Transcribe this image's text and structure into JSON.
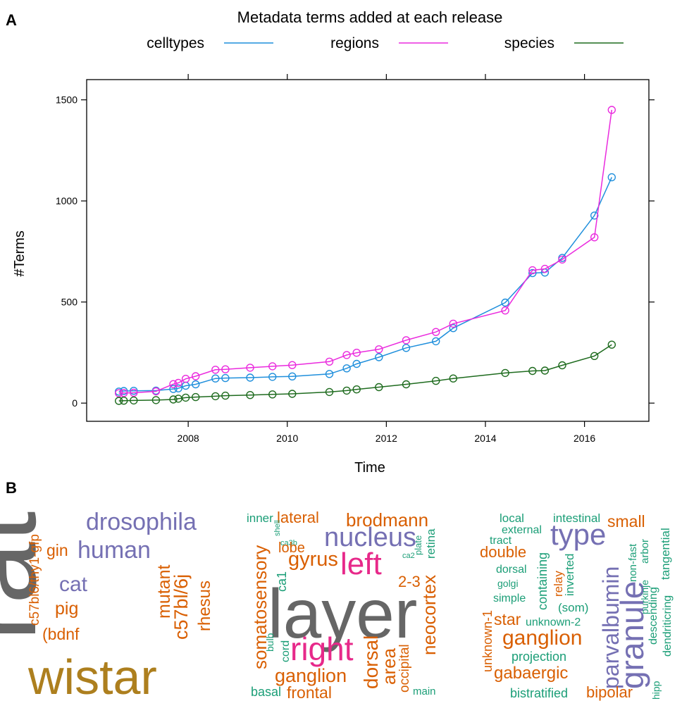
{
  "panels": {
    "a": "A",
    "b": "B"
  },
  "chart_data": {
    "type": "line",
    "title": "Metadata terms added at each release",
    "xlabel": "Time",
    "ylabel": "#Terms",
    "xlim": [
      2005.95,
      2017.3
    ],
    "ylim": [
      -90,
      1600
    ],
    "xticks": [
      2008,
      2010,
      2012,
      2014,
      2016
    ],
    "yticks": [
      0,
      500,
      1000,
      1500
    ],
    "legend_position": "top",
    "grid": false,
    "series": [
      {
        "name": "celltypes",
        "color": "#1f8fdc",
        "x": [
          2006.6,
          2006.7,
          2006.9,
          2007.35,
          2007.7,
          2007.8,
          2007.95,
          2008.15,
          2008.55,
          2008.75,
          2009.25,
          2009.7,
          2010.1,
          2010.85,
          2011.2,
          2011.4,
          2011.85,
          2012.4,
          2013.0,
          2013.35,
          2014.4,
          2014.95,
          2015.2,
          2015.55,
          2016.2,
          2016.55
        ],
        "y": [
          57,
          60,
          61,
          62,
          70,
          73,
          86,
          93,
          122,
          124,
          126,
          130,
          132,
          144,
          172,
          194,
          227,
          273,
          306,
          371,
          497,
          643,
          646,
          718,
          928,
          1117
        ]
      },
      {
        "name": "regions",
        "color": "#ea2bde",
        "x": [
          2006.6,
          2006.7,
          2006.9,
          2007.35,
          2007.7,
          2007.8,
          2007.95,
          2008.15,
          2008.55,
          2008.75,
          2009.25,
          2009.7,
          2010.1,
          2010.85,
          2011.2,
          2011.4,
          2011.85,
          2012.4,
          2013.0,
          2013.35,
          2014.4,
          2014.95,
          2015.2,
          2015.55,
          2016.2,
          2016.55
        ],
        "y": [
          49,
          50,
          51,
          58,
          94,
          100,
          120,
          133,
          165,
          167,
          175,
          182,
          188,
          205,
          238,
          249,
          266,
          311,
          352,
          393,
          458,
          657,
          664,
          710,
          820,
          1450
        ]
      },
      {
        "name": "species",
        "color": "#1e6b1e",
        "x": [
          2006.6,
          2006.7,
          2006.9,
          2007.35,
          2007.7,
          2007.8,
          2007.95,
          2008.15,
          2008.55,
          2008.75,
          2009.25,
          2009.7,
          2010.1,
          2010.85,
          2011.2,
          2011.4,
          2011.85,
          2012.4,
          2013.0,
          2013.35,
          2014.4,
          2014.95,
          2015.2,
          2015.55,
          2016.2,
          2016.55
        ],
        "y": [
          11,
          12,
          13,
          15,
          18,
          22,
          27,
          30,
          34,
          37,
          40,
          43,
          46,
          55,
          62,
          68,
          79,
          93,
          110,
          122,
          149,
          159,
          161,
          187,
          233,
          289
        ]
      }
    ]
  },
  "word_clouds": [
    {
      "name": "species-cloud",
      "words": [
        {
          "text": "rat",
          "color": "#666666"
        },
        {
          "text": "wistar",
          "color": "#ad7f1e"
        },
        {
          "text": "drosophila",
          "color": "#7570b3"
        },
        {
          "text": "human",
          "color": "#7570b3"
        },
        {
          "text": "cat",
          "color": "#7570b3"
        },
        {
          "text": "pig",
          "color": "#d95f02"
        },
        {
          "text": "gin",
          "color": "#d95f02"
        },
        {
          "text": "(bdnf",
          "color": "#d95f02"
        },
        {
          "text": "c57bl6/thy1-gfp",
          "color": "#d95f02"
        },
        {
          "text": "mutant",
          "color": "#d95f02"
        },
        {
          "text": "c57bl/6j",
          "color": "#d95f02"
        },
        {
          "text": "rhesus",
          "color": "#d95f02"
        }
      ]
    },
    {
      "name": "regions-cloud",
      "words": [
        {
          "text": "layer",
          "color": "#666666"
        },
        {
          "text": "right",
          "color": "#e7298a"
        },
        {
          "text": "left",
          "color": "#e7298a"
        },
        {
          "text": "nucleus",
          "color": "#7570b3"
        },
        {
          "text": "gyrus",
          "color": "#d95f02"
        },
        {
          "text": "brodmann",
          "color": "#d95f02"
        },
        {
          "text": "lateral",
          "color": "#d95f02"
        },
        {
          "text": "inner",
          "color": "#1b9e77"
        },
        {
          "text": "shell",
          "color": "#1b9e77"
        },
        {
          "text": "ca3b",
          "color": "#1b9e77"
        },
        {
          "text": "lobe",
          "color": "#d95f02"
        },
        {
          "text": "ca1",
          "color": "#1b9e77"
        },
        {
          "text": "plate",
          "color": "#1b9e77"
        },
        {
          "text": "retina",
          "color": "#1b9e77"
        },
        {
          "text": "ca2",
          "color": "#1b9e77"
        },
        {
          "text": "2-3",
          "color": "#d95f02"
        },
        {
          "text": "somatosensory",
          "color": "#d95f02"
        },
        {
          "text": "bulb",
          "color": "#1b9e77"
        },
        {
          "text": "cord",
          "color": "#1b9e77"
        },
        {
          "text": "neocortex",
          "color": "#d95f02"
        },
        {
          "text": "dorsal",
          "color": "#d95f02"
        },
        {
          "text": "area",
          "color": "#d95f02"
        },
        {
          "text": "occipital",
          "color": "#d95f02"
        },
        {
          "text": "ganglion",
          "color": "#d95f02"
        },
        {
          "text": "frontal",
          "color": "#d95f02"
        },
        {
          "text": "basal",
          "color": "#1b9e77"
        },
        {
          "text": "main",
          "color": "#1b9e77"
        }
      ]
    },
    {
      "name": "celltypes-cloud",
      "words": [
        {
          "text": "type",
          "color": "#7570b3"
        },
        {
          "text": "granule",
          "color": "#7570b3"
        },
        {
          "text": "parvalbumin",
          "color": "#7570b3"
        },
        {
          "text": "ganglion",
          "color": "#d95f02"
        },
        {
          "text": "small",
          "color": "#d95f02"
        },
        {
          "text": "double",
          "color": "#d95f02"
        },
        {
          "text": "star",
          "color": "#d95f02"
        },
        {
          "text": "gabaergic",
          "color": "#d95f02"
        },
        {
          "text": "bipolar",
          "color": "#d95f02"
        },
        {
          "text": "unknown-1",
          "color": "#d95f02"
        },
        {
          "text": "local",
          "color": "#1b9e77"
        },
        {
          "text": "intestinal",
          "color": "#1b9e77"
        },
        {
          "text": "external",
          "color": "#1b9e77"
        },
        {
          "text": "tract",
          "color": "#1b9e77"
        },
        {
          "text": "dorsal",
          "color": "#1b9e77"
        },
        {
          "text": "golgi",
          "color": "#1b9e77"
        },
        {
          "text": "simple",
          "color": "#1b9e77"
        },
        {
          "text": "containing",
          "color": "#1b9e77"
        },
        {
          "text": "relay",
          "color": "#d95f02"
        },
        {
          "text": "inverted",
          "color": "#1b9e77"
        },
        {
          "text": "(som)",
          "color": "#1b9e77"
        },
        {
          "text": "unknown-2",
          "color": "#1b9e77"
        },
        {
          "text": "projection",
          "color": "#1b9e77"
        },
        {
          "text": "bistratified",
          "color": "#1b9e77"
        },
        {
          "text": "non-fast",
          "color": "#1b9e77"
        },
        {
          "text": "arbor",
          "color": "#1b9e77"
        },
        {
          "text": "purkinje",
          "color": "#1b9e77"
        },
        {
          "text": "tangential",
          "color": "#1b9e77"
        },
        {
          "text": "descending",
          "color": "#1b9e77"
        },
        {
          "text": "dendriticring",
          "color": "#1b9e77"
        },
        {
          "text": "hipp",
          "color": "#1b9e77"
        }
      ]
    }
  ]
}
